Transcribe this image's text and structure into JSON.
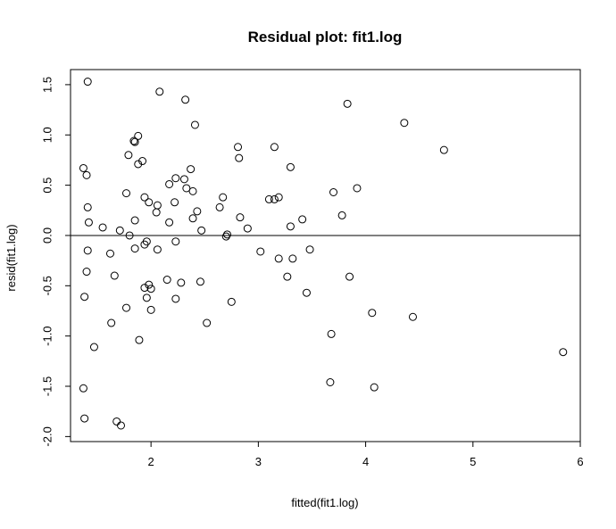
{
  "chart_data": {
    "type": "scatter",
    "title": "Residual plot: fit1.log",
    "xlabel": "fitted(fit1.log)",
    "ylabel": "resid(fit1.log)",
    "xlim": [
      1.25,
      6.0
    ],
    "ylim": [
      -2.05,
      1.65
    ],
    "xticks": [
      2,
      3,
      4,
      5,
      6
    ],
    "yticks": [
      -2.0,
      -1.5,
      -1.0,
      -0.5,
      0.0,
      0.5,
      1.0,
      1.5
    ],
    "xtick_labels": [
      "2",
      "3",
      "4",
      "5",
      "6"
    ],
    "ytick_labels": [
      "-2.0",
      "-1.5",
      "-1.0",
      "-0.5",
      "0.0",
      "0.5",
      "1.0",
      "1.5"
    ],
    "reference_line_y": 0,
    "grid": false,
    "marker": "open-circle",
    "colors": {
      "points": "#000000",
      "axes": "#000000",
      "background": "#ffffff"
    },
    "points": [
      [
        1.41,
        1.53
      ],
      [
        2.08,
        1.43
      ],
      [
        2.32,
        1.35
      ],
      [
        2.41,
        1.1
      ],
      [
        3.83,
        1.31
      ],
      [
        4.36,
        1.12
      ],
      [
        4.73,
        0.85
      ],
      [
        1.88,
        0.99
      ],
      [
        1.84,
        0.94
      ],
      [
        1.85,
        0.93
      ],
      [
        1.79,
        0.8
      ],
      [
        1.92,
        0.74
      ],
      [
        1.88,
        0.71
      ],
      [
        1.37,
        0.67
      ],
      [
        1.4,
        0.6
      ],
      [
        2.81,
        0.88
      ],
      [
        2.82,
        0.77
      ],
      [
        3.15,
        0.88
      ],
      [
        3.3,
        0.68
      ],
      [
        2.37,
        0.66
      ],
      [
        2.23,
        0.57
      ],
      [
        2.31,
        0.56
      ],
      [
        2.17,
        0.51
      ],
      [
        2.33,
        0.47
      ],
      [
        2.39,
        0.44
      ],
      [
        1.77,
        0.42
      ],
      [
        1.94,
        0.38
      ],
      [
        1.98,
        0.33
      ],
      [
        2.22,
        0.33
      ],
      [
        2.06,
        0.3
      ],
      [
        2.05,
        0.23
      ],
      [
        2.43,
        0.24
      ],
      [
        1.41,
        0.28
      ],
      [
        1.42,
        0.13
      ],
      [
        2.64,
        0.28
      ],
      [
        2.67,
        0.38
      ],
      [
        3.1,
        0.36
      ],
      [
        3.15,
        0.36
      ],
      [
        3.19,
        0.38
      ],
      [
        3.7,
        0.43
      ],
      [
        3.92,
        0.47
      ],
      [
        3.78,
        0.2
      ],
      [
        3.41,
        0.16
      ],
      [
        2.83,
        0.18
      ],
      [
        2.39,
        0.17
      ],
      [
        1.85,
        0.15
      ],
      [
        2.17,
        0.13
      ],
      [
        1.55,
        0.08
      ],
      [
        1.71,
        0.05
      ],
      [
        2.47,
        0.05
      ],
      [
        2.9,
        0.07
      ],
      [
        3.3,
        0.09
      ],
      [
        2.71,
        0.01
      ],
      [
        2.7,
        -0.01
      ],
      [
        1.8,
        0.0
      ],
      [
        1.96,
        -0.06
      ],
      [
        1.94,
        -0.09
      ],
      [
        2.23,
        -0.06
      ],
      [
        1.85,
        -0.13
      ],
      [
        2.06,
        -0.14
      ],
      [
        1.41,
        -0.15
      ],
      [
        1.62,
        -0.18
      ],
      [
        3.02,
        -0.16
      ],
      [
        3.19,
        -0.23
      ],
      [
        3.32,
        -0.23
      ],
      [
        3.48,
        -0.14
      ],
      [
        1.4,
        -0.36
      ],
      [
        1.66,
        -0.4
      ],
      [
        2.15,
        -0.44
      ],
      [
        2.28,
        -0.47
      ],
      [
        2.46,
        -0.46
      ],
      [
        1.98,
        -0.49
      ],
      [
        1.94,
        -0.52
      ],
      [
        2.0,
        -0.53
      ],
      [
        3.27,
        -0.41
      ],
      [
        3.85,
        -0.41
      ],
      [
        3.45,
        -0.57
      ],
      [
        1.38,
        -0.61
      ],
      [
        1.96,
        -0.62
      ],
      [
        2.23,
        -0.63
      ],
      [
        2.75,
        -0.66
      ],
      [
        1.77,
        -0.72
      ],
      [
        2.0,
        -0.74
      ],
      [
        4.06,
        -0.77
      ],
      [
        4.44,
        -0.81
      ],
      [
        1.63,
        -0.87
      ],
      [
        2.52,
        -0.87
      ],
      [
        3.68,
        -0.98
      ],
      [
        1.89,
        -1.04
      ],
      [
        1.47,
        -1.11
      ],
      [
        5.84,
        -1.16
      ],
      [
        3.67,
        -1.46
      ],
      [
        4.08,
        -1.51
      ],
      [
        1.37,
        -1.52
      ],
      [
        1.38,
        -1.82
      ],
      [
        1.68,
        -1.85
      ],
      [
        1.72,
        -1.89
      ]
    ]
  }
}
